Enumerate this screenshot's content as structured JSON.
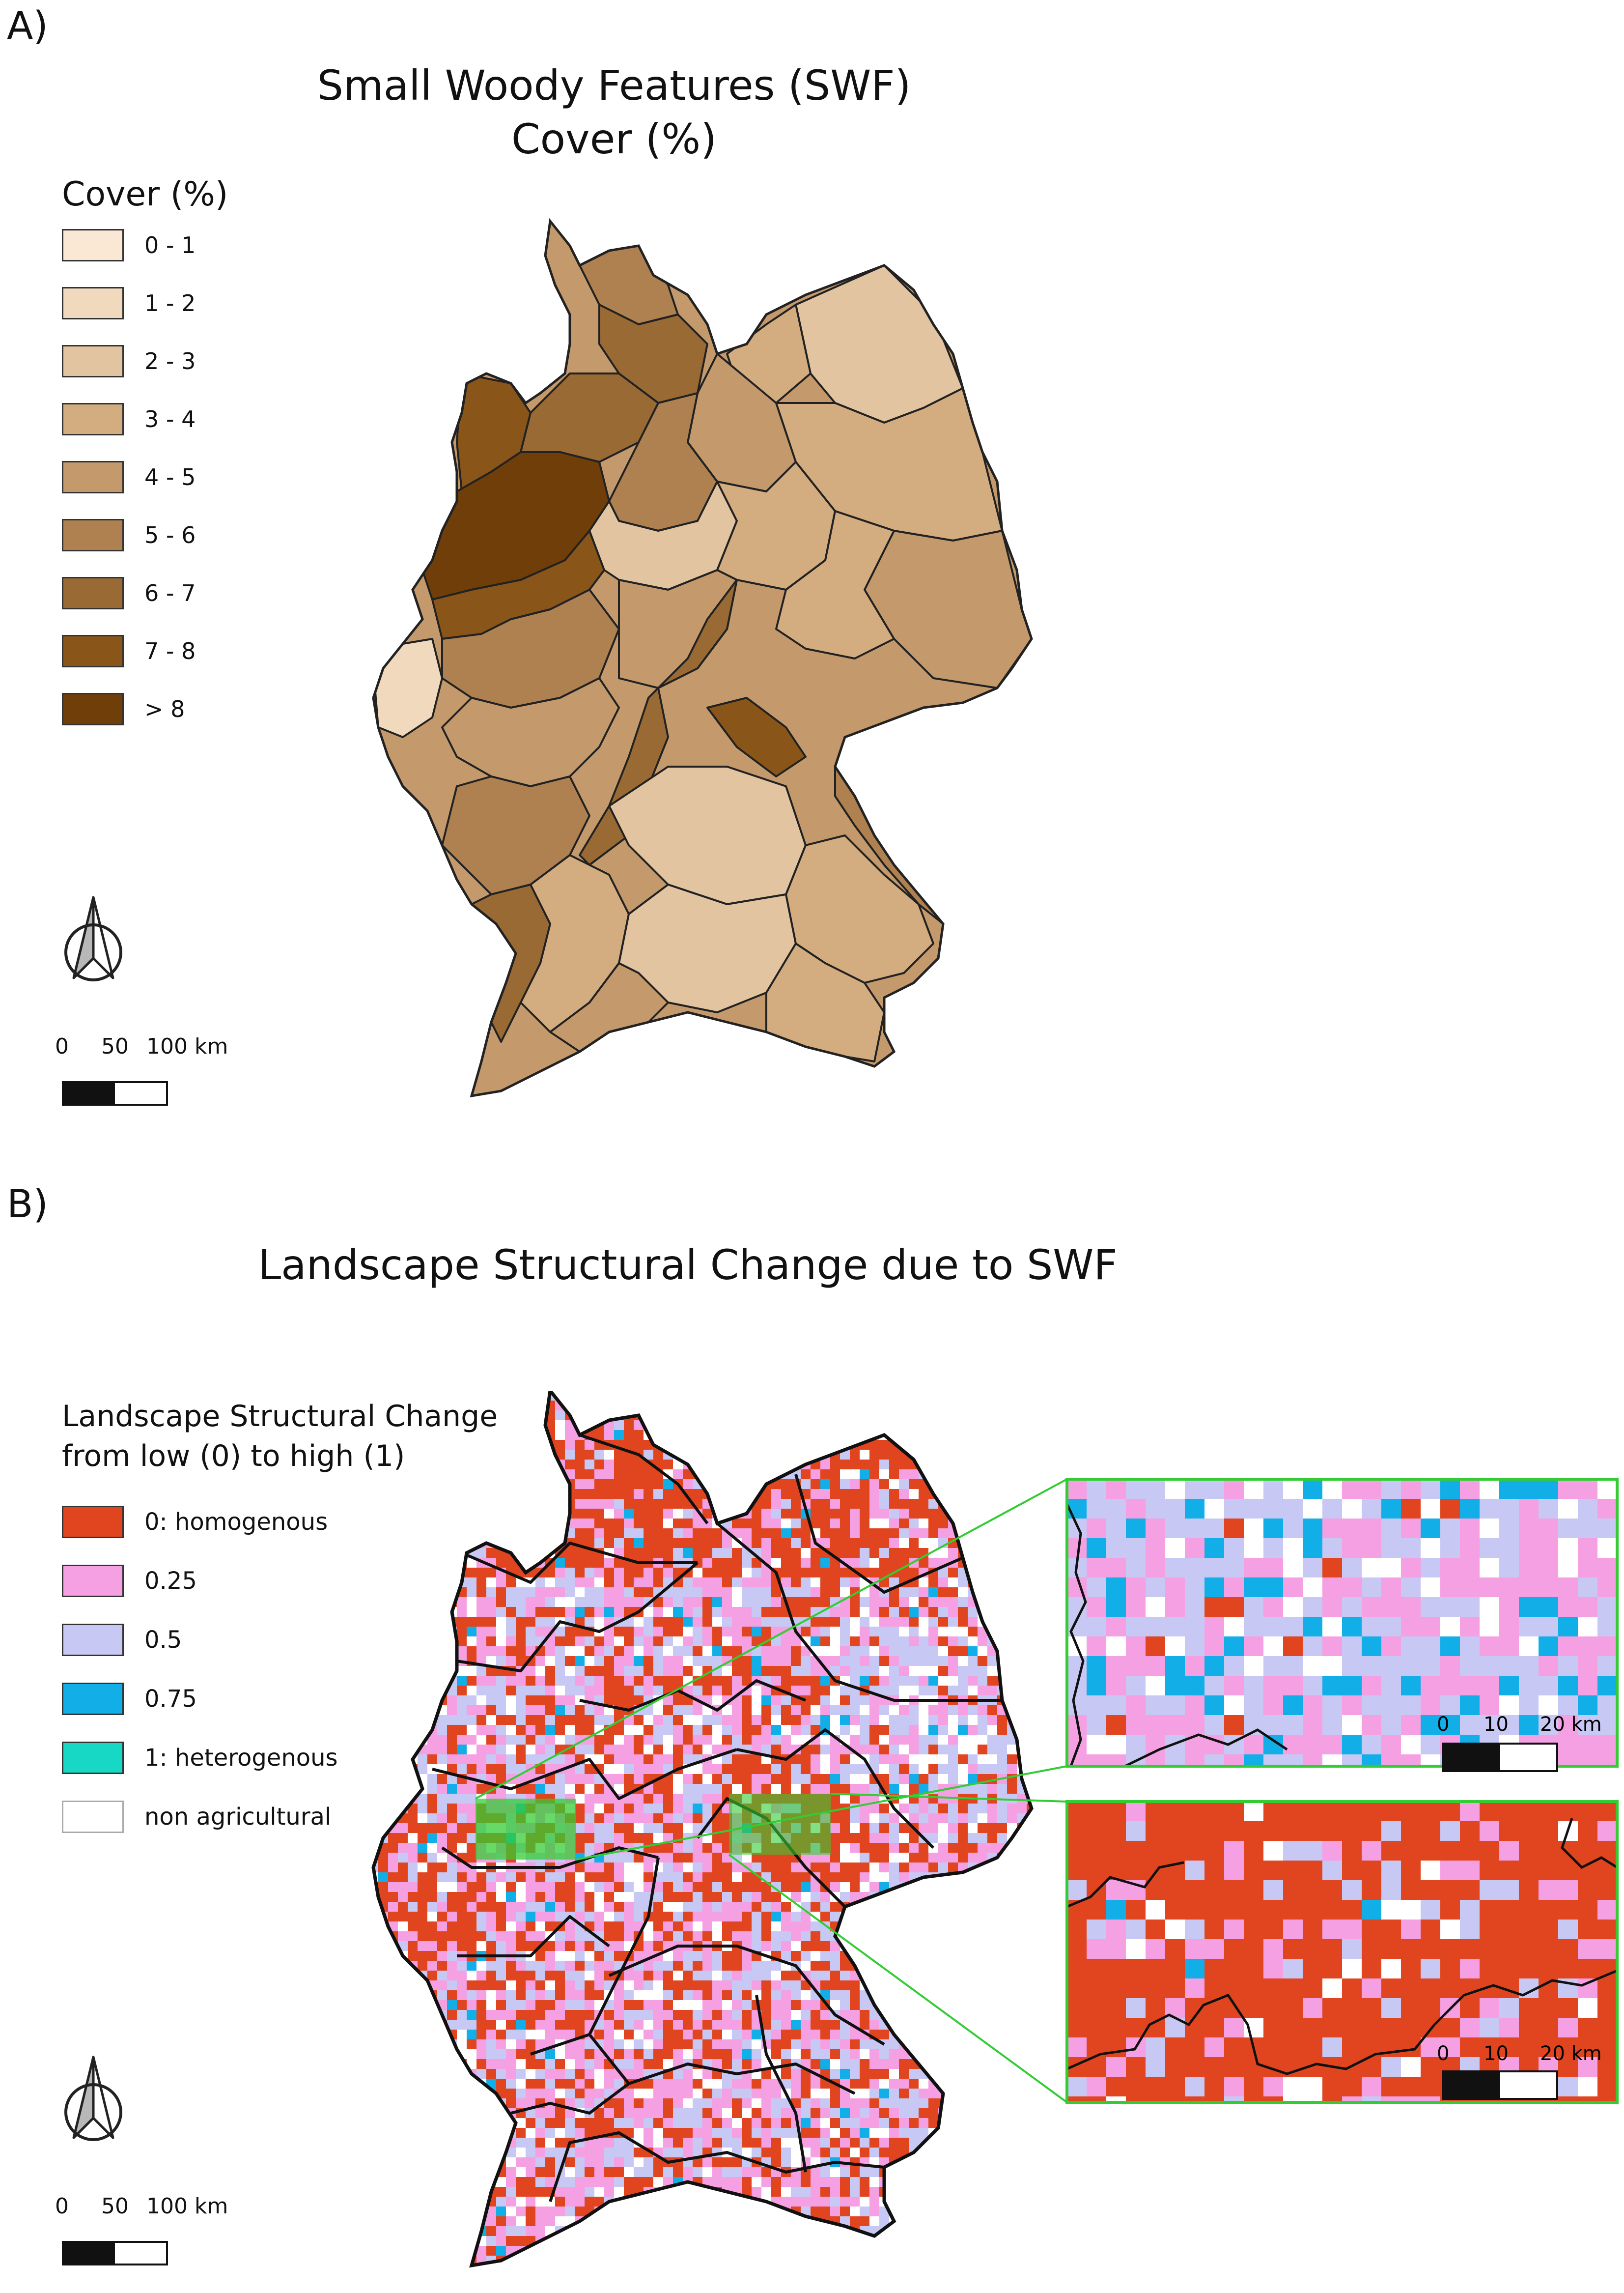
{
  "panel_a": {
    "label": "A)",
    "title_line1": "Small Woody Features (SWF)",
    "title_line2": "Cover (%)",
    "legend": {
      "title": "Cover (%)",
      "items": [
        {
          "label": "0 - 1",
          "color": "#fbe8d4"
        },
        {
          "label": "1 - 2",
          "color": "#f0d9bd"
        },
        {
          "label": "2 - 3",
          "color": "#e2c4a0"
        },
        {
          "label": "3 - 4",
          "color": "#d3ac80"
        },
        {
          "label": "4 - 5",
          "color": "#c49a6c"
        },
        {
          "label": "5 - 6",
          "color": "#af8150"
        },
        {
          "label": "6 - 7",
          "color": "#9a6a34"
        },
        {
          "label": "7 - 8",
          "color": "#8a5518"
        },
        {
          "label": "> 8",
          "color": "#703e08"
        }
      ]
    },
    "scale": {
      "tick_0": "0",
      "tick_50": "50",
      "tick_100": "100 km"
    }
  },
  "panel_b": {
    "label": "B)",
    "title": "Landscape Structural Change due to SWF",
    "legend": {
      "title_line1": "Landscape Structural Change",
      "title_line2": "from low (0) to high (1)",
      "items": [
        {
          "label": "0: homogenous",
          "color": "#e0451f"
        },
        {
          "label": "0.25",
          "color": "#f4a0e2"
        },
        {
          "label": "0.5",
          "color": "#c8c8f4"
        },
        {
          "label": "0.75",
          "color": "#12aee8"
        },
        {
          "label": "1: heterogenous",
          "color": "#16d8c4"
        },
        {
          "label": "non agricultural",
          "color": "#ffffff"
        }
      ]
    },
    "scale": {
      "tick_0": "0",
      "tick_50": "50",
      "tick_100": "100 km"
    },
    "inset_scale": {
      "tick_0": "0",
      "tick_10": "10",
      "tick_20": "20 km"
    },
    "highlight_color": "#33cc33"
  },
  "icons": [
    "north-arrow-icon"
  ]
}
